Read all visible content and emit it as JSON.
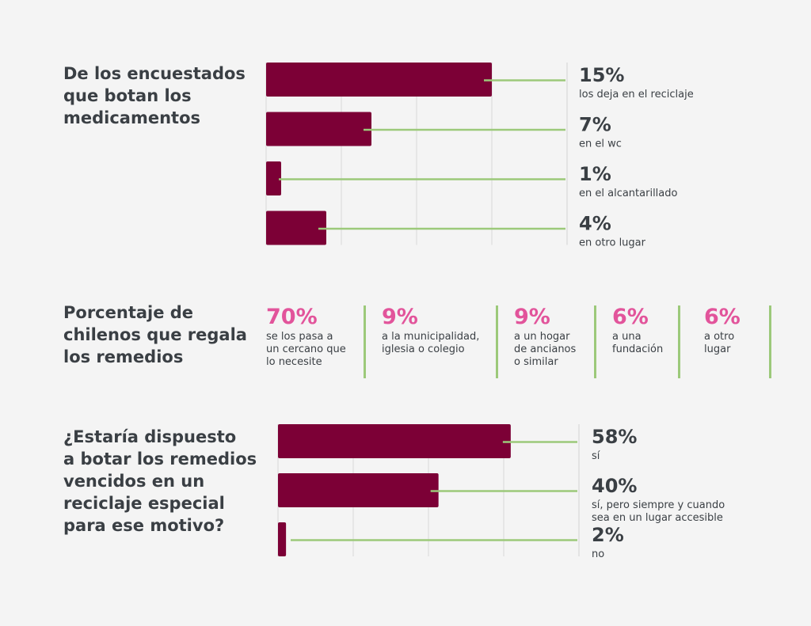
{
  "colors": {
    "bar": "#7c0036",
    "accent_line": "#9cc97a",
    "pink": "#e2549b",
    "text": "#3a3f44",
    "grid": "#d8d8d8"
  },
  "section1": {
    "title_lines": [
      "De los encuestados",
      "que botan los",
      "medicamentos"
    ],
    "chart_data": {
      "type": "bar",
      "orientation": "horizontal",
      "categories": [
        "los deja en el reciclaje",
        "en el wc",
        "en el alcantarillado",
        "en otro lugar"
      ],
      "values": [
        15,
        7,
        1,
        4
      ],
      "value_labels": [
        "15%",
        "7%",
        "1%",
        "4%"
      ],
      "xlim": [
        0,
        20
      ],
      "grid": true,
      "label_lines": [
        [
          "los deja en el reciclaje"
        ],
        [
          "en el wc"
        ],
        [
          "en el alcantarillado"
        ],
        [
          "en otro lugar"
        ]
      ]
    }
  },
  "section2": {
    "title_lines": [
      "Porcentaje de",
      "chilenos que regala",
      "los remedios"
    ],
    "stats": [
      {
        "value": "70%",
        "lines": [
          "se los pasa a",
          "un cercano que",
          "lo necesite"
        ]
      },
      {
        "value": "9%",
        "lines": [
          "a la municipalidad,",
          "iglesia o colegio"
        ]
      },
      {
        "value": "9%",
        "lines": [
          "a un hogar",
          "de ancianos",
          "o similar"
        ]
      },
      {
        "value": "6%",
        "lines": [
          "a una",
          "fundación"
        ]
      },
      {
        "value": "6%",
        "lines": [
          "a otro",
          "lugar"
        ]
      }
    ]
  },
  "section3": {
    "title_lines": [
      "¿Estaría dispuesto",
      "a botar los remedios",
      "vencidos en un",
      "reciclaje especial",
      "para ese motivo?"
    ],
    "chart_data": {
      "type": "bar",
      "orientation": "horizontal",
      "categories": [
        "sí",
        "sí, pero siempre y cuando sea en un lugar accesible",
        "no"
      ],
      "values": [
        58,
        40,
        2
      ],
      "value_labels": [
        "58%",
        "40%",
        "2%"
      ],
      "xlim": [
        0,
        75
      ],
      "grid": true,
      "label_lines": [
        [
          "sí"
        ],
        [
          "sí, pero siempre y cuando",
          "sea en un lugar accesible"
        ],
        [
          "no"
        ]
      ]
    }
  }
}
